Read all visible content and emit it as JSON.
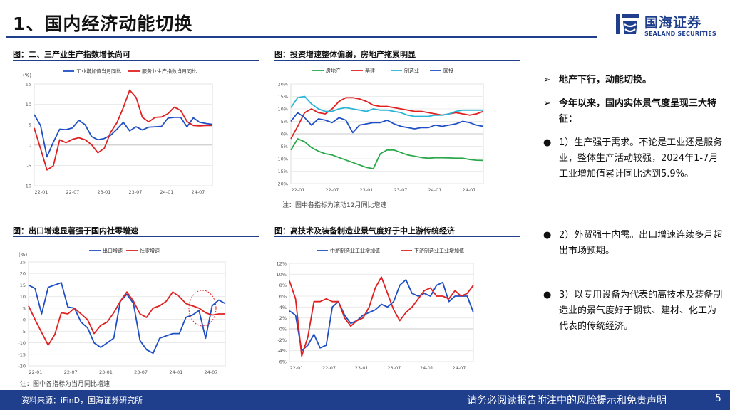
{
  "page": {
    "title": "1、国内经济动能切换",
    "logo_cn": "国海证券",
    "logo_en": "SEALAND SECURITIES",
    "footer_source": "资料来源：iFinD，国海证券研究所",
    "footer_disclaimer": "请务必阅读报告附注中的风险提示和免责声明",
    "page_number": "5"
  },
  "panels": {
    "p1_title": "图：二、三产业生产指数增长尚可",
    "p2_title": "图：投资增速整体偏弱，房地产拖累明显",
    "p2_note": "注：图中各指标为滚动12月同比增速",
    "p3_title": "图：出口增速显著强于国内社零增速",
    "p3_note": "注：图中各指标为当月同比增速",
    "p4_title": "图：高技术及装备制造业景气度好于中上游传统经济"
  },
  "bullets": {
    "b1": "地产下行，动能切换。",
    "b2": "今年以来，国内实体景气度呈现三大特征：",
    "b3": "1）生产强于需求。不论是工业还是服务业，整体生产活动较强，2024年1-7月工业增加值累计同比达到5.9%。",
    "b4": "2）外贸强于内需。出口增速连续多月超出市场预期。",
    "b5": "3）以专用设备为代表的高技术及装备制造业的景气度好于钢铁、建材、化工为代表的传统经济。"
  },
  "colors": {
    "brand": "#1f3f8c",
    "blue": "#1f4fc4",
    "red": "#e02020",
    "green": "#2aa84a",
    "cyan": "#2ab5d6"
  },
  "chart_data": [
    {
      "type": "line",
      "ylabel": "(%)",
      "ylim": [
        -10,
        15
      ],
      "yticks": [
        "-10",
        "-5",
        "0",
        "5",
        "10",
        "15"
      ],
      "xticks": [
        "22-01",
        "22-07",
        "23-01",
        "23-07",
        "24-01",
        "24-07"
      ],
      "series": [
        {
          "name": "工业增加值当月同比",
          "color": "blue",
          "values": [
            7.5,
            4.8,
            -2.9,
            0.7,
            3.9,
            3.8,
            4.2,
            6.1,
            5.0,
            2.1,
            1.3,
            1.6,
            2.4,
            3.9,
            5.6,
            3.5,
            4.5,
            3.7,
            4.4,
            4.5,
            4.6,
            6.6,
            6.8,
            6.8,
            4.5,
            6.7,
            5.6,
            5.3,
            5.1
          ]
        },
        {
          "name": "服务业生产指数当月同比",
          "color": "red",
          "values": [
            4.2,
            -0.9,
            -6.1,
            -5.1,
            1.3,
            0.6,
            1.4,
            1.8,
            1.3,
            0.1,
            -1.9,
            -0.8,
            3.1,
            5.5,
            9.2,
            13.5,
            11.7,
            6.8,
            5.7,
            6.8,
            6.9,
            7.7,
            9.3,
            8.5,
            5.8,
            4.8,
            4.7,
            4.8,
            4.8
          ]
        }
      ]
    },
    {
      "type": "line",
      "ylim": [
        -20,
        20
      ],
      "yticks": [
        "-20%",
        "-15%",
        "-10%",
        "-5%",
        "0%",
        "5%",
        "10%",
        "15%",
        "20%"
      ],
      "xticks": [
        "22-01",
        "22-07",
        "23-01",
        "23-07",
        "24-01",
        "24-07"
      ],
      "series": [
        {
          "name": "房地产",
          "color": "green",
          "values": [
            -6.5,
            -2.0,
            -3.2,
            -5.5,
            -7.0,
            -8.0,
            -8.5,
            -9.5,
            -10.5,
            -11.5,
            -12.5,
            -13.5,
            -14.0,
            -8.0,
            -6.5,
            -6.5,
            -7.5,
            -8.5,
            -9.0,
            -9.5,
            -9.8,
            -9.6,
            -9.6,
            -9.7,
            -9.8,
            -9.8,
            -10.3,
            -10.6,
            -10.7
          ]
        },
        {
          "name": "基建",
          "color": "red",
          "values": [
            -2.0,
            3.0,
            8.5,
            10.0,
            8.5,
            8.0,
            10.0,
            13.0,
            14.5,
            14.5,
            14.0,
            13.0,
            11.5,
            11.0,
            11.0,
            10.5,
            10.0,
            9.5,
            9.0,
            9.0,
            8.5,
            8.0,
            7.5,
            8.0,
            8.5,
            8.0,
            7.5,
            8.0,
            9.0
          ]
        },
        {
          "name": "制造业",
          "color": "cyan",
          "values": [
            10.5,
            14.5,
            15.0,
            12.0,
            10.0,
            9.0,
            9.0,
            10.0,
            10.5,
            10.0,
            9.5,
            9.0,
            10.0,
            9.5,
            9.5,
            9.0,
            8.5,
            7.5,
            7.0,
            7.0,
            7.0,
            7.5,
            7.5,
            8.0,
            9.0,
            9.5,
            9.5,
            9.5,
            9.5
          ]
        },
        {
          "name": "固投",
          "color": "blue",
          "values": [
            5.0,
            8.5,
            6.5,
            3.5,
            6.0,
            5.5,
            4.5,
            6.5,
            5.5,
            0.5,
            3.5,
            4.0,
            4.5,
            4.5,
            5.5,
            4.0,
            3.0,
            2.5,
            2.0,
            2.5,
            2.5,
            3.5,
            3.0,
            3.5,
            4.0,
            5.0,
            4.5,
            3.5,
            3.0
          ]
        }
      ]
    },
    {
      "type": "line",
      "ylabel": "(%)",
      "ylim": [
        -20,
        25
      ],
      "yticks": [
        "-20",
        "-15",
        "-10",
        "-5",
        "0",
        "5",
        "10",
        "15",
        "20",
        "25"
      ],
      "xticks": [
        "22-01",
        "22-07",
        "23-01",
        "23-07",
        "24-01",
        "24-07"
      ],
      "series": [
        {
          "name": "出口增速",
          "color": "blue",
          "values": [
            15,
            13.5,
            2.5,
            14,
            15,
            16,
            5.5,
            5,
            -1,
            -3.5,
            -10,
            -12,
            -10,
            -8,
            8,
            11,
            7,
            -9,
            -13,
            -14.5,
            -8,
            -7,
            -6,
            -6,
            1,
            2,
            4,
            -8,
            6,
            8.5,
            7
          ]
        },
        {
          "name": "社零增速",
          "color": "red",
          "values": [
            6,
            0,
            -5.5,
            -11,
            -6.5,
            3,
            2.5,
            5,
            2.5,
            0,
            -6,
            -2.5,
            -1,
            3,
            8,
            12,
            8,
            2.5,
            1,
            5,
            6,
            8,
            12,
            10,
            7,
            6,
            5,
            3,
            2,
            2.5,
            2.5
          ]
        }
      ]
    },
    {
      "type": "line",
      "ylim": [
        -6,
        12
      ],
      "yticks": [
        "-6%",
        "-4%",
        "-2%",
        "0%",
        "2%",
        "4%",
        "6%",
        "8%",
        "10%",
        "12%"
      ],
      "xticks": [
        "22-01",
        "22-07",
        "23-01",
        "23-07",
        "24-01",
        "24-07"
      ],
      "series": [
        {
          "name": "中游制造业工业增加值",
          "color": "blue",
          "values": [
            3.3,
            2.5,
            -4.0,
            -3.0,
            -1.0,
            -3.5,
            -3.0,
            4.0,
            5.0,
            2.5,
            1.0,
            1.5,
            2.5,
            3.0,
            3.5,
            4.5,
            4.0,
            5.0,
            8.0,
            9.0,
            6.5,
            6.0,
            6.5,
            6.0,
            8.0,
            8.5,
            5.0,
            6.0,
            6.0,
            6.0,
            3.0
          ]
        },
        {
          "name": "下游制造业工业增加值",
          "color": "red",
          "values": [
            8.8,
            5.5,
            -5.0,
            -1.5,
            5.0,
            5.0,
            5.5,
            5.0,
            5.0,
            2.0,
            0.5,
            1.5,
            2.0,
            4.0,
            7.5,
            9.5,
            6.5,
            3.5,
            1.5,
            3.0,
            4.0,
            5.5,
            7.0,
            7.5,
            6.0,
            6.0,
            5.5,
            7.0,
            6.0,
            6.5,
            8.0
          ]
        }
      ]
    }
  ]
}
